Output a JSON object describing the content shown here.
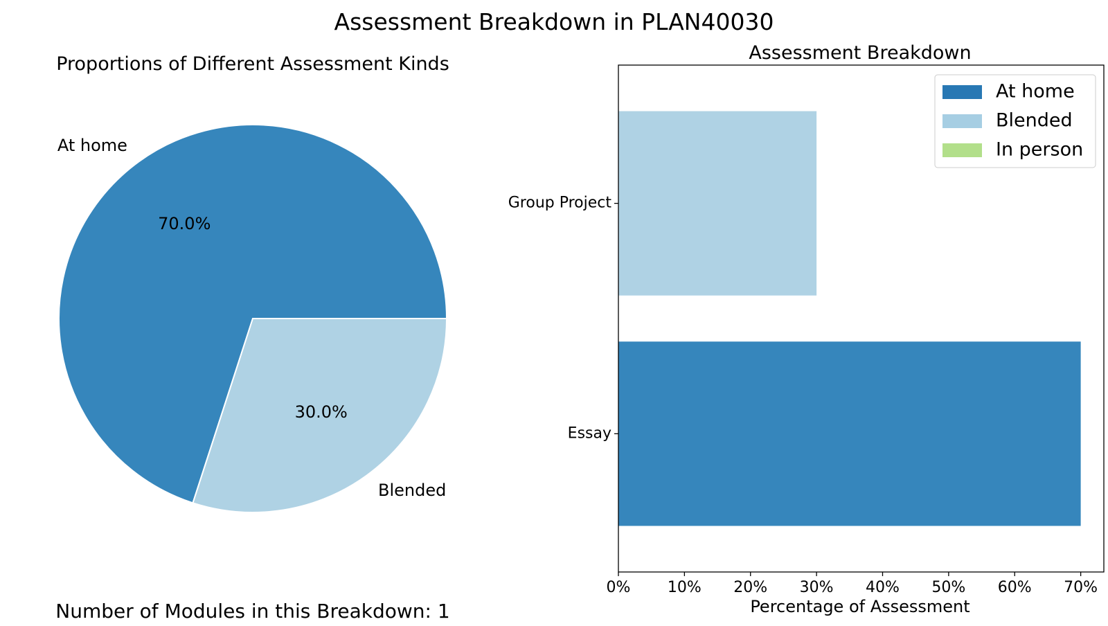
{
  "figure": {
    "title": "Assessment Breakdown in PLAN40030",
    "footer": "Number of Modules in this Breakdown: 1"
  },
  "colors": {
    "at_home": "#3686bc",
    "blended": "#afd2e4",
    "in_person": "#b2df8a",
    "legend_at_home": "#2878b4"
  },
  "chart_data": [
    {
      "type": "pie",
      "title": "Proportions of Different Assessment Kinds",
      "slices": [
        {
          "label": "At home",
          "value": 70.0,
          "pct_label": "70.0%",
          "color": "#3686bc"
        },
        {
          "label": "Blended",
          "value": 30.0,
          "pct_label": "30.0%",
          "color": "#afd2e4"
        }
      ]
    },
    {
      "type": "bar",
      "orientation": "horizontal",
      "title": "Assessment Breakdown",
      "xlabel": "Percentage of Assessment",
      "ylabel": "",
      "categories": [
        "Essay",
        "Group Project"
      ],
      "series": [
        {
          "name": "At home",
          "values": [
            70,
            0
          ],
          "color": "#3686bc"
        },
        {
          "name": "Blended",
          "values": [
            0,
            30
          ],
          "color": "#afd2e4"
        },
        {
          "name": "In person",
          "values": [
            0,
            0
          ],
          "color": "#b2df8a"
        }
      ],
      "xlim": [
        0,
        73.5
      ],
      "xticks": [
        0,
        10,
        20,
        30,
        40,
        50,
        60,
        70
      ],
      "xtick_labels": [
        "0%",
        "10%",
        "20%",
        "30%",
        "40%",
        "50%",
        "60%",
        "70%"
      ],
      "legend": {
        "placement": "top-right",
        "entries": [
          {
            "label": "At home",
            "color": "#2878b4"
          },
          {
            "label": "Blended",
            "color": "#a6cee3"
          },
          {
            "label": "In person",
            "color": "#b2df8a"
          }
        ]
      },
      "grid": false
    }
  ]
}
